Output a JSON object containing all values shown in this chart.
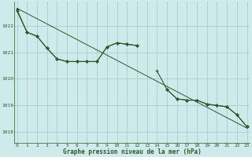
{
  "title": "Graphe pression niveau de la mer (hPa)",
  "background_color": "#ceeaea",
  "grid_color": "#a8cece",
  "line_color": "#2d5a2d",
  "text_color": "#2d5a2d",
  "ylim": [
    1017.6,
    1022.9
  ],
  "xlim": [
    -0.3,
    23.3
  ],
  "yticks": [
    1018,
    1019,
    1020,
    1021,
    1022
  ],
  "xticks": [
    0,
    1,
    2,
    3,
    4,
    5,
    6,
    7,
    8,
    9,
    10,
    11,
    12,
    13,
    14,
    15,
    16,
    17,
    18,
    19,
    20,
    21,
    22,
    23
  ],
  "series_straight": {
    "x": [
      0,
      23
    ],
    "y": [
      1022.65,
      1018.15
    ]
  },
  "series_zigzag": [
    1022.55,
    1021.75,
    1021.6,
    1021.15,
    1020.75,
    1020.65,
    1020.65,
    1020.65,
    1020.65,
    1021.2,
    1021.35,
    1021.3,
    1021.25,
    null,
    1020.3,
    1019.6,
    1019.25,
    1019.2,
    1019.2,
    1019.05,
    1019.0,
    1018.95,
    1018.65,
    1018.2
  ],
  "series_smooth": [
    1022.6,
    1021.75,
    1021.6,
    1021.15,
    1020.75,
    1020.65,
    1020.65,
    1020.65,
    1020.65,
    1021.2,
    1021.35,
    1021.3,
    1021.25,
    null,
    null,
    1019.6,
    1019.25,
    1019.2,
    1019.2,
    1019.05,
    1019.0,
    1018.95,
    1018.65,
    1018.2
  ]
}
